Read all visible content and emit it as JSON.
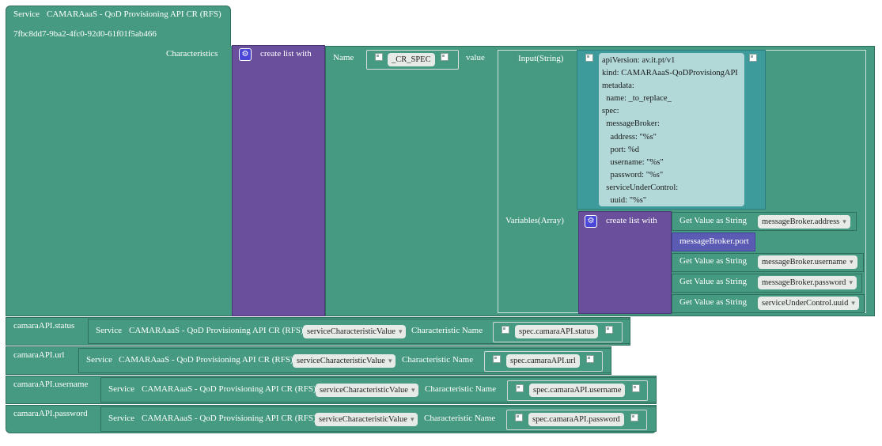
{
  "service_block": {
    "label": "Service",
    "name": "CAMARAaaS - QoD Provisioning API CR (RFS)",
    "id": "7fbc8dd7-9ba2-4fc0-92d0-61f01f5ab466",
    "characteristics_label": "Characteristics"
  },
  "create_list_label": "create list with",
  "name_label": "Name",
  "name_value": "_CR_SPEC",
  "value_label": "value",
  "input_label": "Input(String)",
  "yaml_text": "apiVersion: av.it.pt/v1\nkind: CAMARAaaS-QoDProvisiongAPI\nmetadata:\n  name: _to_replace_\nspec:\n  messageBroker:\n    address: \"%s\"\n    port: %d\n    username: \"%s\"\n    password: \"%s\"\n  serviceUnderControl:\n    uuid: \"%s\"",
  "variables_label": "Variables(Array)",
  "get_value_label": "Get Value as String",
  "variables": [
    {
      "type": "get",
      "value": "messageBroker.address"
    },
    {
      "type": "plain",
      "value": "messageBroker.port"
    },
    {
      "type": "get",
      "value": "messageBroker.username"
    },
    {
      "type": "get",
      "value": "messageBroker.password"
    },
    {
      "type": "get",
      "value": "serviceUnderControl.uuid"
    }
  ],
  "char_rows": [
    {
      "key": "camaraAPI.status",
      "service": "Service",
      "service_name": "CAMARAaaS - QoD Provisioning API CR (RFS)",
      "dropdown": "serviceCharacteristicValue",
      "char_name_label": "Characteristic Name",
      "char_value": "spec.camaraAPI.status"
    },
    {
      "key": "camaraAPI.url",
      "service": "Service",
      "service_name": "CAMARAaaS - QoD Provisioning API CR (RFS)",
      "dropdown": "serviceCharacteristicValue",
      "char_name_label": "Characteristic Name",
      "char_value": "spec.camaraAPI.url"
    },
    {
      "key": "camaraAPI.username",
      "service": "Service",
      "service_name": "CAMARAaaS - QoD Provisioning API CR (RFS)",
      "dropdown": "serviceCharacteristicValue",
      "char_name_label": "Characteristic Name",
      "char_value": "spec.camaraAPI.username"
    },
    {
      "key": "camaraAPI.password",
      "service": "Service",
      "service_name": "CAMARAaaS - QoD Provisioning API CR (RFS)",
      "dropdown": "serviceCharacteristicValue",
      "char_name_label": "Characteristic Name",
      "char_value": "spec.camaraAPI.password"
    }
  ],
  "icons": {
    "gear": "gear-icon",
    "quote": "quote-icon"
  },
  "colors": {
    "green": "#459a81",
    "purple": "#6a4f9c",
    "teal": "#3d9b9b",
    "blue": "#5b5bb3"
  }
}
